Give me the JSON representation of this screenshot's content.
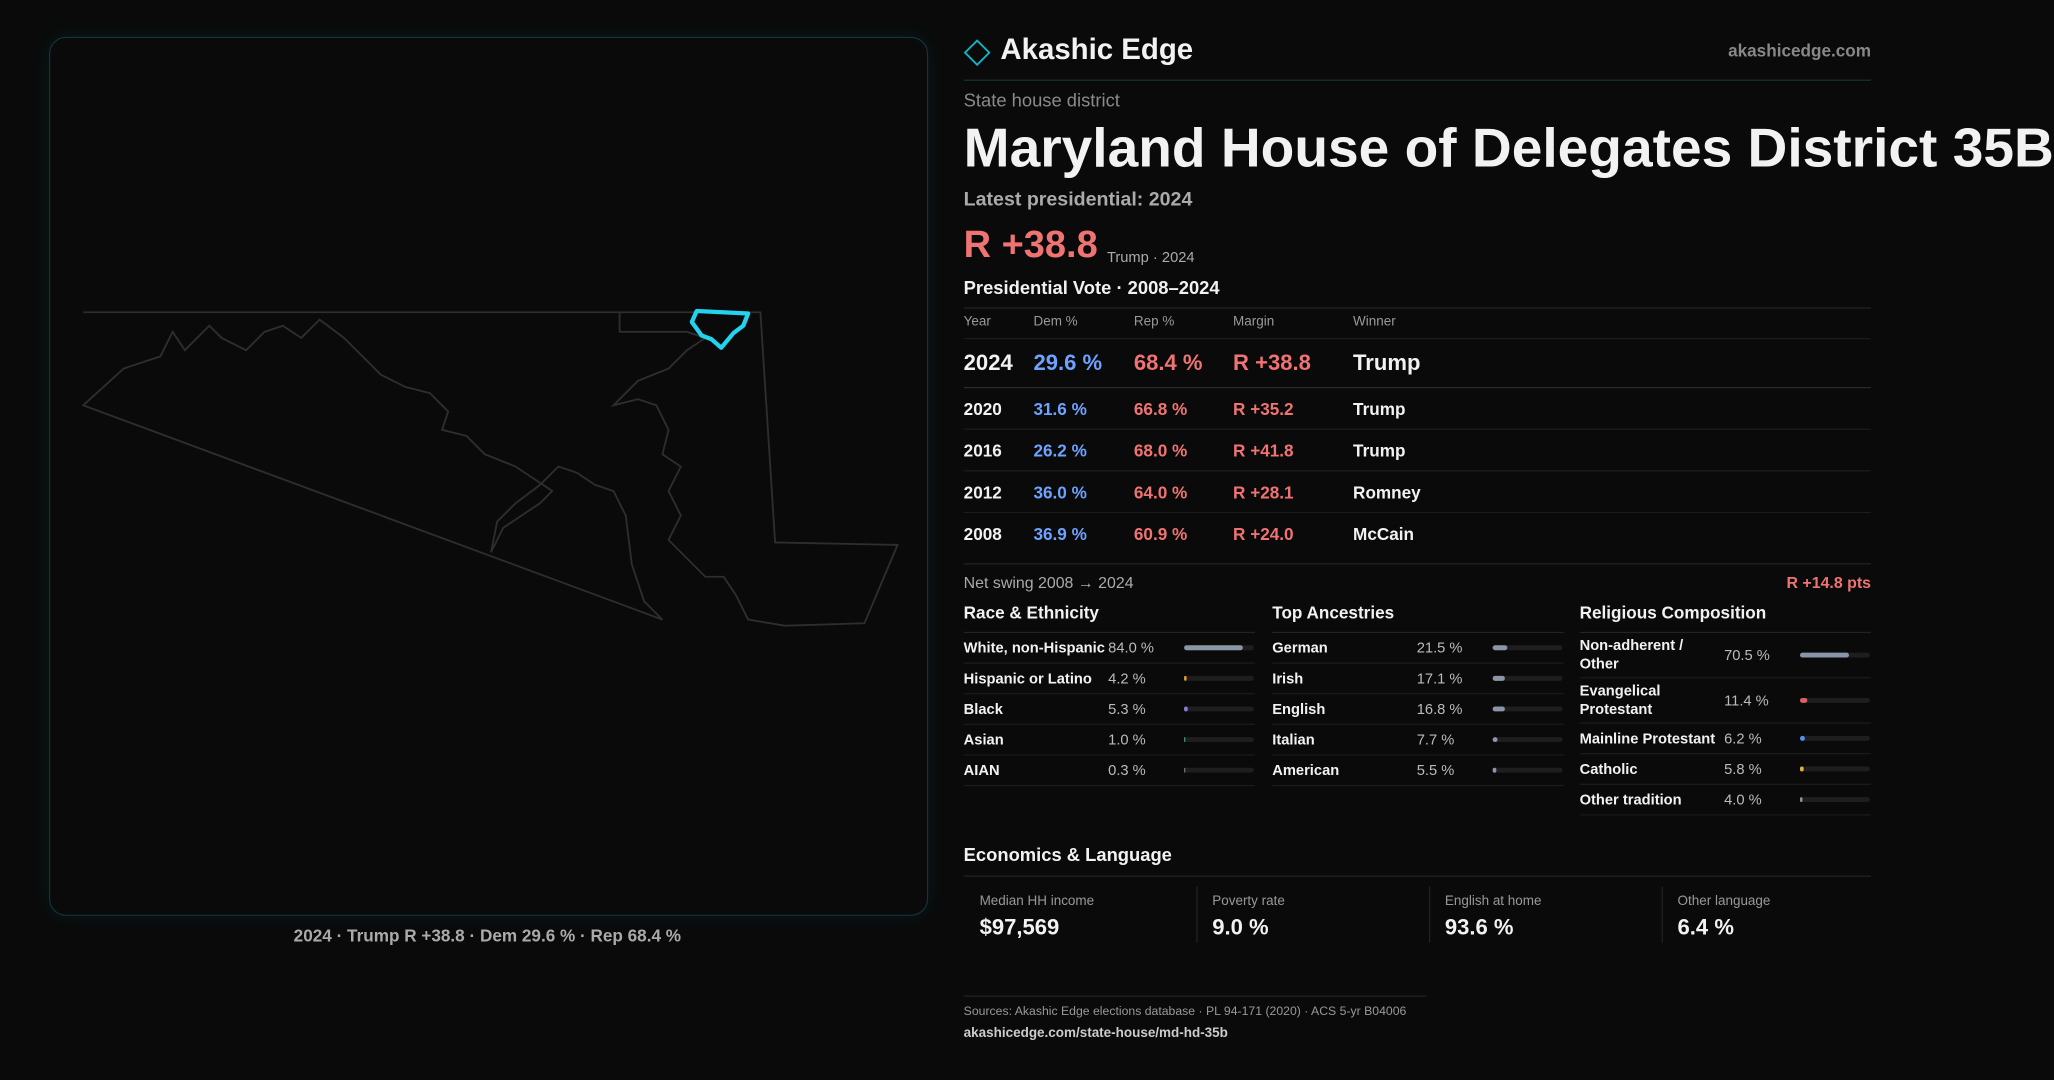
{
  "header": {
    "brand": "Akashic Edge",
    "site": "akashicedge.com"
  },
  "district": {
    "kind": "State house district",
    "title": "Maryland House of Delegates District 35B",
    "latest": "Latest presidential: 2024",
    "margin": "R +38.8",
    "margin_note": "Trump · 2024"
  },
  "map_caption": "2024 · Trump R +38.8 · Dem 29.6 % · Rep 68.4 %",
  "vote_table": {
    "title": "Presidential Vote · 2008–2024",
    "columns": [
      "Year",
      "Dem %",
      "Rep %",
      "Margin",
      "Winner"
    ],
    "rows": [
      [
        "2024",
        "29.6 %",
        "68.4 %",
        "R +38.8",
        "Trump"
      ],
      [
        "2020",
        "31.6 %",
        "66.8 %",
        "R +35.2",
        "Trump"
      ],
      [
        "2016",
        "26.2 %",
        "68.0 %",
        "R +41.8",
        "Trump"
      ],
      [
        "2012",
        "36.0 %",
        "64.0 %",
        "R +28.1",
        "Romney"
      ],
      [
        "2008",
        "36.9 %",
        "60.9 %",
        "R +24.0",
        "McCain"
      ]
    ]
  },
  "swing": {
    "label": "Net swing 2008 → 2024",
    "value": "R +14.8 pts"
  },
  "race": {
    "title": "Race & Ethnicity",
    "rows": [
      {
        "name": "White, non-Hispanic",
        "pct": 84.0,
        "label": "84.0 %",
        "color": "#8a95a8"
      },
      {
        "name": "Hispanic or Latino",
        "pct": 4.2,
        "label": "4.2 %",
        "color": "#e0a030"
      },
      {
        "name": "Black",
        "pct": 5.3,
        "label": "5.3 %",
        "color": "#8a7ae0"
      },
      {
        "name": "Asian",
        "pct": 1.0,
        "label": "1.0 %",
        "color": "#3aa070"
      },
      {
        "name": "AIAN",
        "pct": 0.3,
        "label": "0.3 %",
        "color": "#777777"
      }
    ]
  },
  "ancestries": {
    "title": "Top Ancestries",
    "rows": [
      {
        "name": "German",
        "pct": 21.5,
        "label": "21.5 %",
        "color": "#8a95a8"
      },
      {
        "name": "Irish",
        "pct": 17.1,
        "label": "17.1 %",
        "color": "#8a95a8"
      },
      {
        "name": "English",
        "pct": 16.8,
        "label": "16.8 %",
        "color": "#8a95a8"
      },
      {
        "name": "Italian",
        "pct": 7.7,
        "label": "7.7 %",
        "color": "#8a95a8"
      },
      {
        "name": "American",
        "pct": 5.5,
        "label": "5.5 %",
        "color": "#8a95a8"
      }
    ]
  },
  "religion": {
    "title": "Religious Composition",
    "rows": [
      {
        "name": "Non-adherent / Other",
        "pct": 70.5,
        "label": "70.5 %",
        "color": "#8a95a8"
      },
      {
        "name": "Evangelical Protestant",
        "pct": 11.4,
        "label": "11.4 %",
        "color": "#e06060"
      },
      {
        "name": "Mainline Protestant",
        "pct": 6.2,
        "label": "6.2 %",
        "color": "#5b8def"
      },
      {
        "name": "Catholic",
        "pct": 5.8,
        "label": "5.8 %",
        "color": "#e0b040"
      },
      {
        "name": "Other tradition",
        "pct": 4.0,
        "label": "4.0 %",
        "color": "#8a95a8"
      }
    ]
  },
  "economics": {
    "title": "Economics & Language",
    "cards": [
      {
        "label": "Median HH income",
        "value": "$97,569"
      },
      {
        "label": "Poverty rate",
        "value": "9.0 %"
      },
      {
        "label": "English at home",
        "value": "93.6 %"
      },
      {
        "label": "Other language",
        "value": "6.4 %"
      }
    ]
  },
  "footer": {
    "sources": "Sources: Akashic Edge elections database · PL 94-171 (2020) · ACS 5-yr B04006",
    "url": "akashicedge.com/state-house/md-hd-35b"
  }
}
